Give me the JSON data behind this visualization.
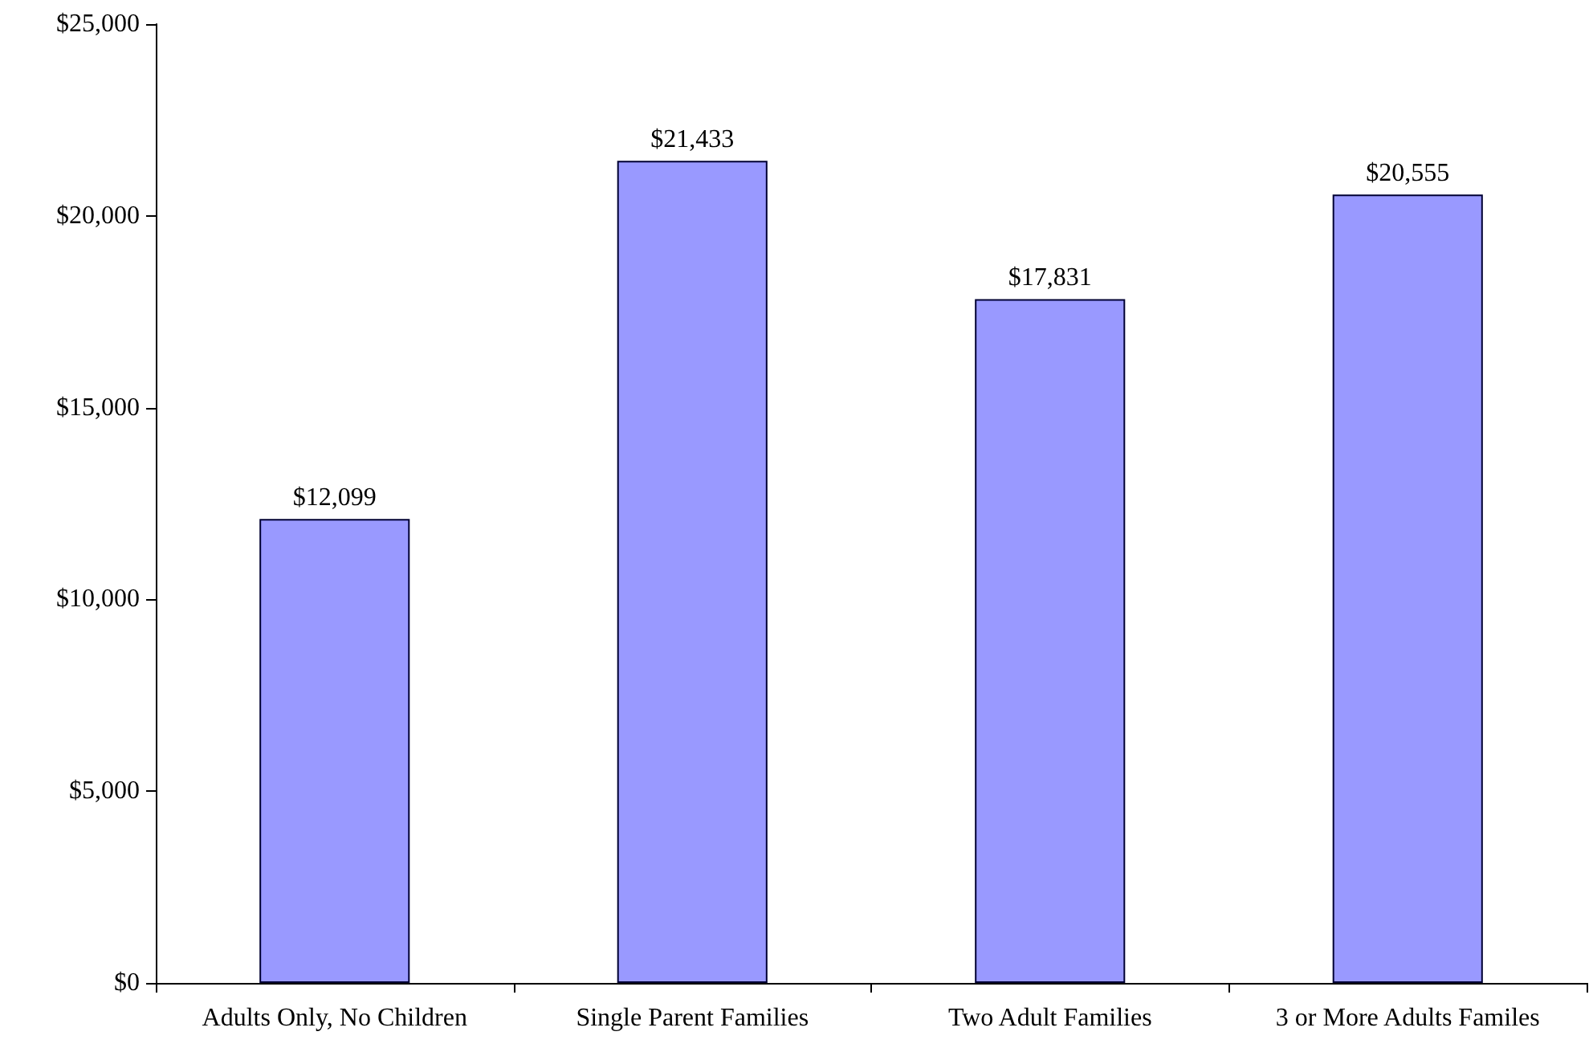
{
  "chart_data": {
    "type": "bar",
    "categories": [
      "Adults Only, No Children",
      "Single Parent Families",
      "Two Adult Families",
      "3 or More Adults Familes"
    ],
    "values": [
      12099,
      21433,
      17831,
      20555
    ],
    "color": "#9999ff",
    "value_labels": [
      "$12,099",
      "$21,433",
      "$17,831",
      "$20,555"
    ],
    "ylim": [
      0,
      25000
    ],
    "yticks": [
      {
        "value": 0,
        "label": "$0"
      },
      {
        "value": 5000,
        "label": "$5,000"
      },
      {
        "value": 10000,
        "label": "$10,000"
      },
      {
        "value": 15000,
        "label": "$15,000"
      },
      {
        "value": 20000,
        "label": "$20,000"
      },
      {
        "value": 25000,
        "label": "$25,000"
      }
    ],
    "grid": false
  }
}
